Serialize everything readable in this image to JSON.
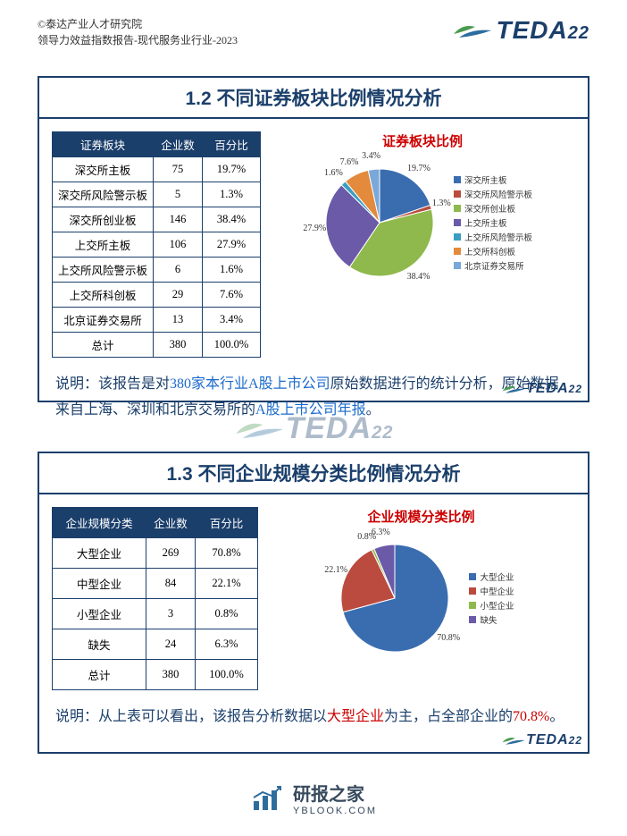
{
  "header": {
    "line1": "©泰达产业人才研究院",
    "line2": "领导力效益指数报告-现代服务业行业-2023"
  },
  "brand": {
    "name": "TEDA",
    "tag": "22"
  },
  "panel1": {
    "title": "1.2 不同证券板块比例情况分析",
    "table": {
      "columns": [
        "证券板块",
        "企业数",
        "百分比"
      ],
      "rows": [
        [
          "深交所主板",
          "75",
          "19.7%"
        ],
        [
          "深交所风险警示板",
          "5",
          "1.3%"
        ],
        [
          "深交所创业板",
          "146",
          "38.4%"
        ],
        [
          "上交所主板",
          "106",
          "27.9%"
        ],
        [
          "上交所风险警示板",
          "6",
          "1.6%"
        ],
        [
          "上交所科创板",
          "29",
          "7.6%"
        ],
        [
          "北京证券交易所",
          "13",
          "3.4%"
        ],
        [
          "总计",
          "380",
          "100.0%"
        ]
      ]
    },
    "chart": {
      "type": "pie",
      "title": "证券板块比例",
      "slices": [
        {
          "label": "深交所主板",
          "value": 19.7,
          "color": "#3a6db0",
          "text": "19.7%"
        },
        {
          "label": "深交所风险警示板",
          "value": 1.3,
          "color": "#bb4b3e",
          "text": "1.3%"
        },
        {
          "label": "深交所创业板",
          "value": 38.4,
          "color": "#8fb94c",
          "text": "38.4%"
        },
        {
          "label": "上交所主板",
          "value": 27.9,
          "color": "#6a5aa8",
          "text": "27.9%"
        },
        {
          "label": "上交所风险警示板",
          "value": 1.6,
          "color": "#3a9ec2",
          "text": "1.6%"
        },
        {
          "label": "上交所科创板",
          "value": 7.6,
          "color": "#e38a3c",
          "text": "7.6%"
        },
        {
          "label": "北京证券交易所",
          "value": 3.4,
          "color": "#7aa8d8",
          "text": "3.4%"
        }
      ],
      "background": "#ffffff"
    },
    "note": {
      "pre": "说明：该报告是对",
      "hl1": "380家本行业A股上市公司",
      "mid": "原始数据进行的统计分析，原始数据来自上海、深圳和北京交易所的",
      "hl2": "A股上市公司年报",
      "suf": "。"
    }
  },
  "panel2": {
    "title": "1.3 不同企业规模分类比例情况分析",
    "table": {
      "columns": [
        "企业规模分类",
        "企业数",
        "百分比"
      ],
      "rows": [
        [
          "大型企业",
          "269",
          "70.8%"
        ],
        [
          "中型企业",
          "84",
          "22.1%"
        ],
        [
          "小型企业",
          "3",
          "0.8%"
        ],
        [
          "缺失",
          "24",
          "6.3%"
        ],
        [
          "总计",
          "380",
          "100.0%"
        ]
      ]
    },
    "chart": {
      "type": "pie",
      "title": "企业规模分类比例",
      "slices": [
        {
          "label": "大型企业",
          "value": 70.8,
          "color": "#3a6db0",
          "text": "70.8%"
        },
        {
          "label": "中型企业",
          "value": 22.1,
          "color": "#bb4b3e",
          "text": "22.1%"
        },
        {
          "label": "小型企业",
          "value": 0.8,
          "color": "#8fb94c",
          "text": "0.8%"
        },
        {
          "label": "缺失",
          "value": 6.3,
          "color": "#6a5aa8",
          "text": "6.3%"
        }
      ],
      "background": "#ffffff"
    },
    "note": {
      "pre": "说明：从上表可以看出，该报告分析数据以",
      "hl1": "大型企业",
      "mid": "为主，占全部企业的",
      "hl2": "70.8%",
      "suf": "。"
    }
  },
  "footer": {
    "title": "研报之家",
    "url": "YBLOOK.COM"
  }
}
